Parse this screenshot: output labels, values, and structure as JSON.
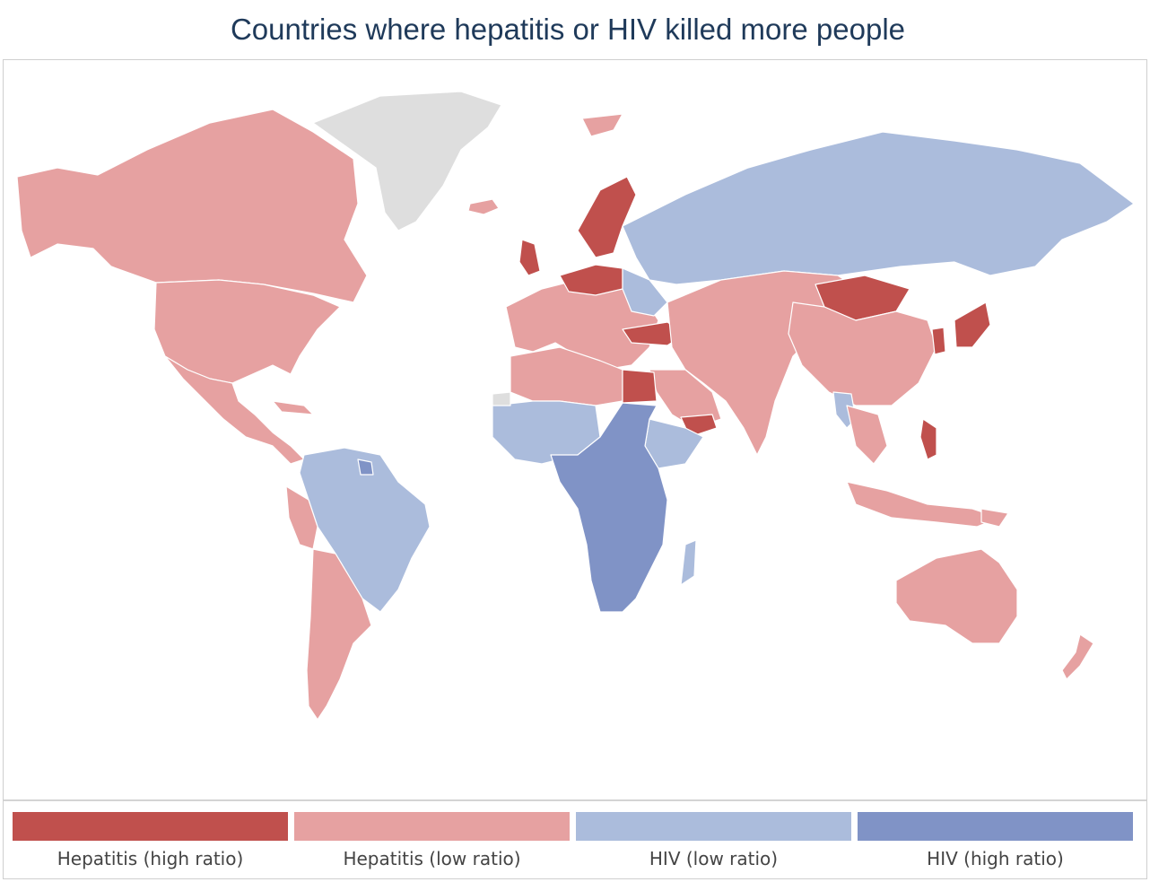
{
  "title": "Countries where hepatitis or HIV killed more people",
  "colors": {
    "hep_high": "#c0504d",
    "hep_low": "#e6a1a1",
    "hiv_low": "#abbcdc",
    "hiv_high": "#8093c6",
    "no_data": "#dedede"
  },
  "legend": [
    {
      "label": "Hepatitis (high ratio)",
      "color": "#c0504d"
    },
    {
      "label": "Hepatitis (low ratio)",
      "color": "#e6a1a1"
    },
    {
      "label": "HIV (low ratio)",
      "color": "#abbcdc"
    },
    {
      "label": "HIV (high ratio)",
      "color": "#8093c6"
    }
  ]
}
